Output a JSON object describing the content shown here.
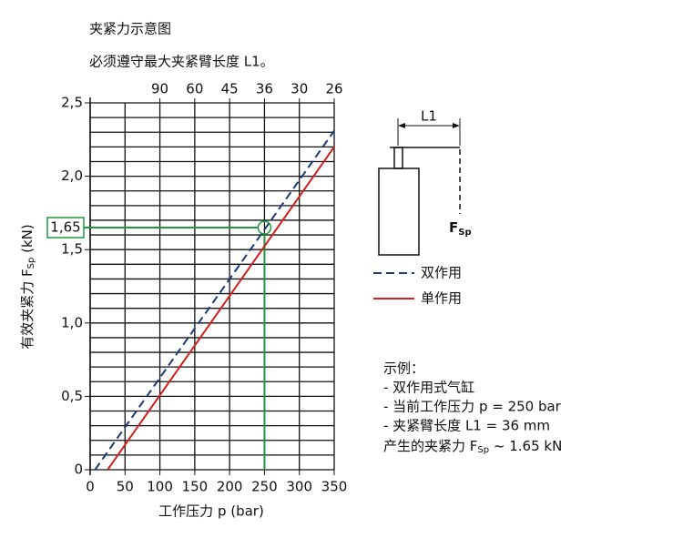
{
  "title": "夹紧力示意图",
  "subtitle": "必须遵守最大夹紧臂长度 L1。",
  "chart_data": {
    "type": "line",
    "ylabel": {
      "text": "有效夹紧力 F",
      "sub": "Sp",
      "suffix": " (kN)"
    },
    "xlabel": "工作压力 p (bar)",
    "xlim": [
      0,
      350
    ],
    "xticks": [
      0,
      50,
      100,
      150,
      200,
      250,
      300,
      350
    ],
    "ylim": [
      0,
      2.5
    ],
    "yticks": [
      0,
      {
        "value": 0.5,
        "label": "0,5"
      },
      {
        "value": 1.0,
        "label": "1,0"
      },
      {
        "value": 1.5,
        "label": "1,5"
      },
      {
        "value": 2.0,
        "label": "2,0"
      },
      {
        "value": 2.5,
        "label": "2,5"
      }
    ],
    "ygrid_step": 0.1,
    "x2ticks": [
      {
        "value": 100,
        "label": "90"
      },
      {
        "value": 150,
        "label": "60"
      },
      {
        "value": 200,
        "label": "45"
      },
      {
        "value": 250,
        "label": "36"
      },
      {
        "value": 300,
        "label": "30"
      },
      {
        "value": 350,
        "label": "26"
      }
    ],
    "grid": true,
    "series": [
      {
        "name": "双作用",
        "color": "#1a3a7a",
        "dash": true,
        "x": [
          7,
          350
        ],
        "values": [
          0,
          2.31
        ]
      },
      {
        "name": "单作用",
        "color": "#d0201c",
        "dash": false,
        "x": [
          25,
          350
        ],
        "values": [
          0,
          2.2
        ]
      }
    ],
    "annotation": {
      "x": 250,
      "y": 1.65,
      "label": "1,65",
      "color": "#1e9a3a"
    }
  },
  "diagram": {
    "length_label": "L1",
    "force_label": {
      "text": "F",
      "sub": "Sp"
    }
  },
  "example": {
    "heading": "示例：",
    "lines": [
      "- 双作用式气缸",
      "- 当前工作压力 p = 250 bar",
      "- 夹紧臂长度 L1 = 36 mm"
    ],
    "result": {
      "text": "产生的夹紧力 F",
      "sub": "Sp",
      "suffix": " ~ 1.65 kN"
    }
  }
}
